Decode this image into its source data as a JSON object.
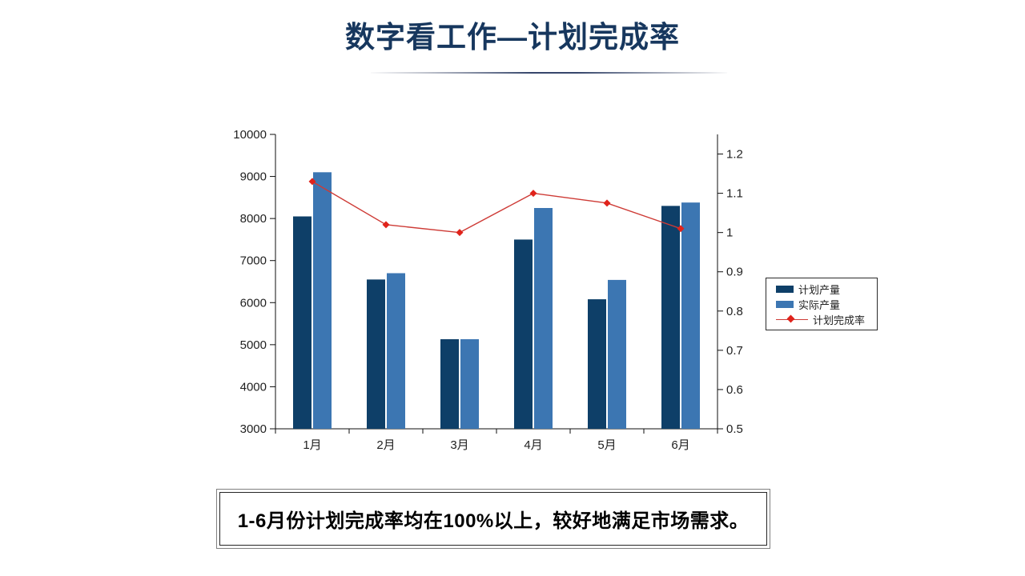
{
  "title": {
    "text": "数字看工作—计划完成率",
    "color": "#17375E"
  },
  "summary": {
    "text": "1-6月份计划完成率均在100%以上，较好地满足市场需求。"
  },
  "legend": {
    "position": "right",
    "items": [
      {
        "label": "计划产量",
        "type": "bar",
        "color": "#0E3F68"
      },
      {
        "label": "实际产量",
        "type": "bar",
        "color": "#3C76B2"
      },
      {
        "label": "计划完成率",
        "type": "line",
        "color": "#CE3B36",
        "marker_color": "#E0231B"
      }
    ]
  },
  "chart_data": {
    "type": "bar",
    "subtype": "combo-bar-line",
    "categories": [
      "1月",
      "2月",
      "3月",
      "4月",
      "5月",
      "6月"
    ],
    "series": [
      {
        "name": "计划产量",
        "type": "bar",
        "axis": "left",
        "color": "#0E3F68",
        "values": [
          8050,
          6550,
          5130,
          7500,
          6080,
          8300
        ]
      },
      {
        "name": "实际产量",
        "type": "bar",
        "axis": "left",
        "color": "#3C76B2",
        "values": [
          9100,
          6700,
          5130,
          8250,
          6540,
          8380
        ]
      },
      {
        "name": "计划完成率",
        "type": "line",
        "axis": "right",
        "color": "#CE3B36",
        "marker": "diamond",
        "marker_color": "#E0231B",
        "values": [
          1.13,
          1.02,
          1.0,
          1.1,
          1.075,
          1.01
        ]
      }
    ],
    "title": "",
    "xlabel": "",
    "ylabel": "",
    "grid": false,
    "legend_position": "right",
    "y_left": {
      "min": 3000,
      "max": 10000,
      "step": 1000,
      "ticks": [
        "3000",
        "4000",
        "5000",
        "6000",
        "7000",
        "8000",
        "9000",
        "10000"
      ]
    },
    "y_right": {
      "min": 0.5,
      "max": 1.25,
      "step": 0.1,
      "ticks": [
        "0.5",
        "0.6",
        "0.7",
        "0.8",
        "0.9",
        "1",
        "1.1",
        "1.2"
      ]
    }
  },
  "colors": {
    "axis_line": "#0d0d0d",
    "axis_text": "#1f1f1f",
    "title_divider": "#36466b",
    "background": "#ffffff"
  }
}
